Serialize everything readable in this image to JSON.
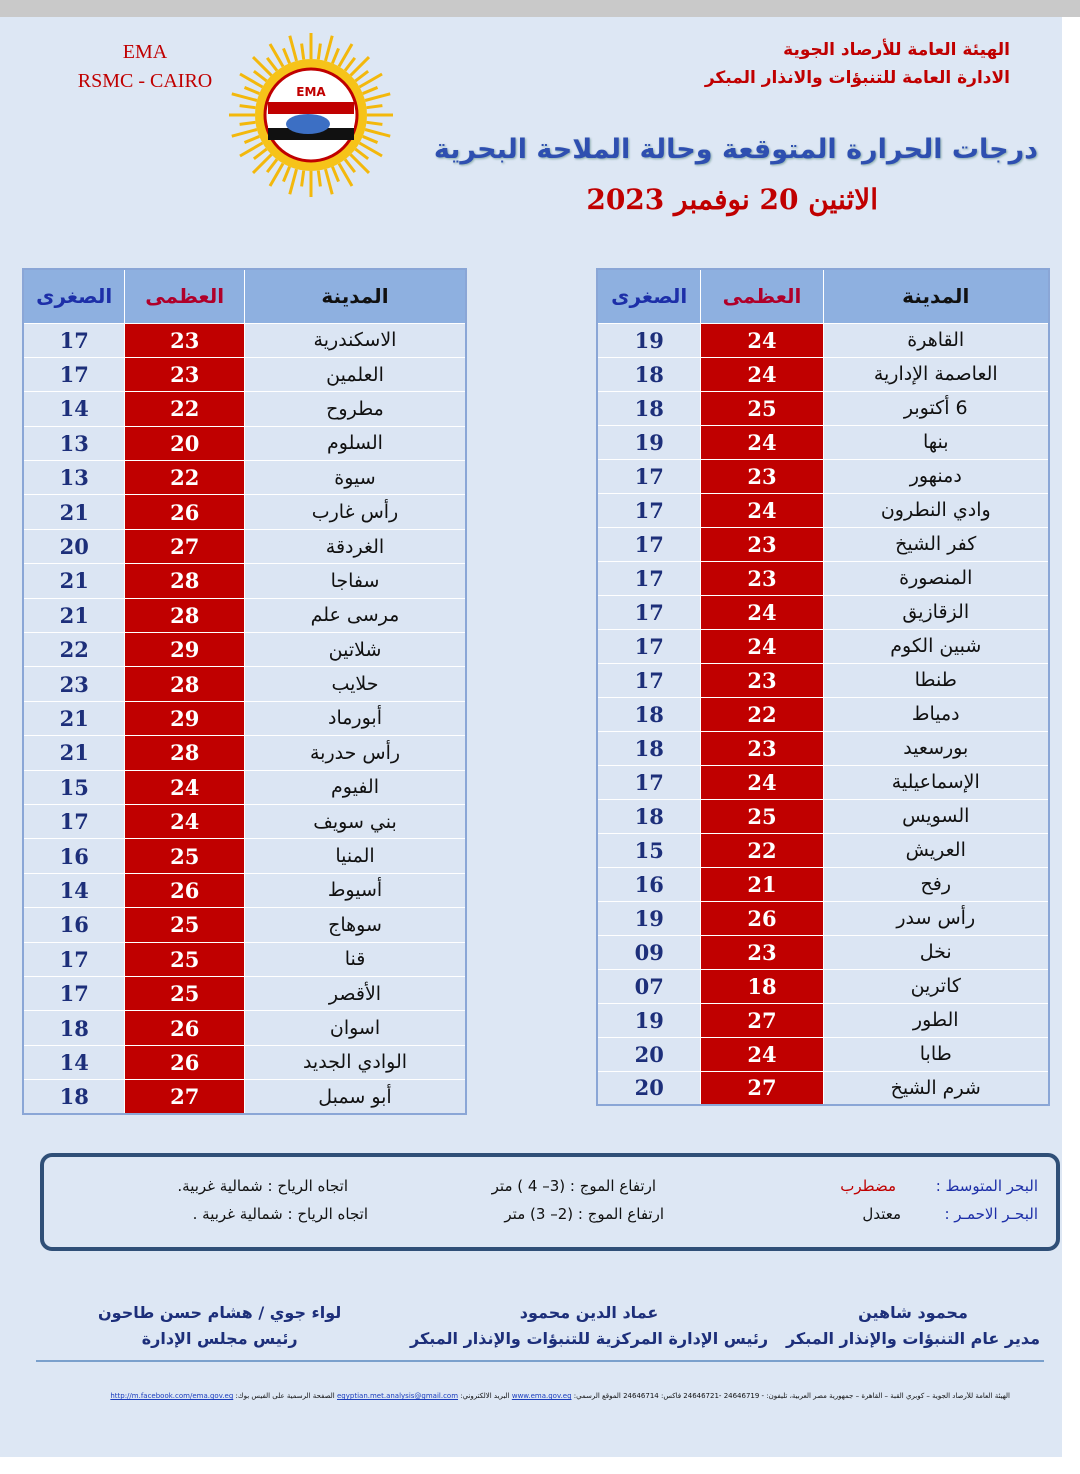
{
  "header": {
    "ema": "EMA",
    "rsmc": "RSMC - CAIRO",
    "org_line1": "الهيئة العامة للأرصاد الجوية",
    "org_line2": "الادارة العامة للتنبؤات والانذار المبكر",
    "logo_text": "EMA",
    "title": "درجات الحرارة المتوقعة وحالة الملاحة البحرية",
    "date": "الاثنين 20 نوفمبر 2023"
  },
  "columns": {
    "city": "المدينة",
    "max": "العظمى",
    "min": "الصغرى"
  },
  "colors": {
    "max_bg": "#c00000",
    "header_bg": "#8eb0e0",
    "min_text": "#1d2f7a"
  },
  "right_table": [
    [
      "القاهرة",
      "24",
      "19"
    ],
    [
      "العاصمة الإدارية",
      "24",
      "18"
    ],
    [
      "6 أكتوبر",
      "25",
      "18"
    ],
    [
      "بنها",
      "24",
      "19"
    ],
    [
      "دمنهور",
      "23",
      "17"
    ],
    [
      "وادي النطرون",
      "24",
      "17"
    ],
    [
      "كفر الشيخ",
      "23",
      "17"
    ],
    [
      "المنصورة",
      "23",
      "17"
    ],
    [
      "الزقازيق",
      "24",
      "17"
    ],
    [
      "شبين الكوم",
      "24",
      "17"
    ],
    [
      "طنطا",
      "23",
      "17"
    ],
    [
      "دمياط",
      "22",
      "18"
    ],
    [
      "بورسعيد",
      "23",
      "18"
    ],
    [
      "الإسماعيلية",
      "24",
      "17"
    ],
    [
      "السويس",
      "25",
      "18"
    ],
    [
      "العريش",
      "22",
      "15"
    ],
    [
      "رفح",
      "21",
      "16"
    ],
    [
      "رأس سدر",
      "26",
      "19"
    ],
    [
      "نخل",
      "23",
      "09"
    ],
    [
      "كاترين",
      "18",
      "07"
    ],
    [
      "الطور",
      "27",
      "19"
    ],
    [
      "طابا",
      "24",
      "20"
    ],
    [
      "شرم الشيخ",
      "27",
      "20"
    ]
  ],
  "left_table": [
    [
      "الاسكندرية",
      "23",
      "17"
    ],
    [
      "العلمين",
      "23",
      "17"
    ],
    [
      "مطروح",
      "22",
      "14"
    ],
    [
      "السلوم",
      "20",
      "13"
    ],
    [
      "سيوة",
      "22",
      "13"
    ],
    [
      "رأس غارب",
      "26",
      "21"
    ],
    [
      "الغردقة",
      "27",
      "20"
    ],
    [
      "سفاجا",
      "28",
      "21"
    ],
    [
      "مرسى علم",
      "28",
      "21"
    ],
    [
      "شلاتين",
      "29",
      "22"
    ],
    [
      "حلايب",
      "28",
      "23"
    ],
    [
      "أبورماد",
      "29",
      "21"
    ],
    [
      "رأس حدربة",
      "28",
      "21"
    ],
    [
      "الفيوم",
      "24",
      "15"
    ],
    [
      "بني سويف",
      "24",
      "17"
    ],
    [
      "المنيا",
      "25",
      "16"
    ],
    [
      "أسيوط",
      "26",
      "14"
    ],
    [
      "سوهاج",
      "25",
      "16"
    ],
    [
      "قنا",
      "25",
      "17"
    ],
    [
      "الأقصر",
      "25",
      "17"
    ],
    [
      "اسوان",
      "26",
      "18"
    ],
    [
      "الوادي الجديد",
      "26",
      "14"
    ],
    [
      "أبو سمبل",
      "27",
      "18"
    ]
  ],
  "sea": {
    "med_label": "البحر المتوسط :",
    "med_state": "مضطرب",
    "med_waves": "ارتفاع الموج : (3– 4 ) متر",
    "med_wind": "اتجاه الرياح : شمالية غربية.",
    "red_label": "البحـر الاحمـر :",
    "red_state": "معتدل",
    "red_waves": "ارتفاع الموج : (2– 3) متر",
    "red_wind": "اتجاه الرياح : شمالية غربية ."
  },
  "signatures": [
    {
      "name": "محمود شاهين",
      "role": "مدير عام التنبؤات والإنذار المبكر"
    },
    {
      "name": "عماد الدين محمود",
      "role": "رئيس الإدارة المركزية للتنبؤات والإنذار المبكر"
    },
    {
      "name": "لواء جوي / هشام حسن طاحون",
      "role": "رئيس مجلس الإدارة"
    }
  ],
  "footer": {
    "address": "الهيئة العامة للأرصاد الجوية – كوبري القبة – القاهرة – جمهورية مصر العربية، تليفون: - 24646719 -24646721 فاكس: 24646714 الموقع الرسمي:",
    "website": "www.ema.gov.eg",
    "email_label": "البريد الالكتروني:",
    "email": "egyptian.met.analysis@gmail.com",
    "fb_label": "الصفحة الرسمية على الفيس بوك:",
    "facebook": "http://m.facebook.com/ema.gov.eg"
  }
}
